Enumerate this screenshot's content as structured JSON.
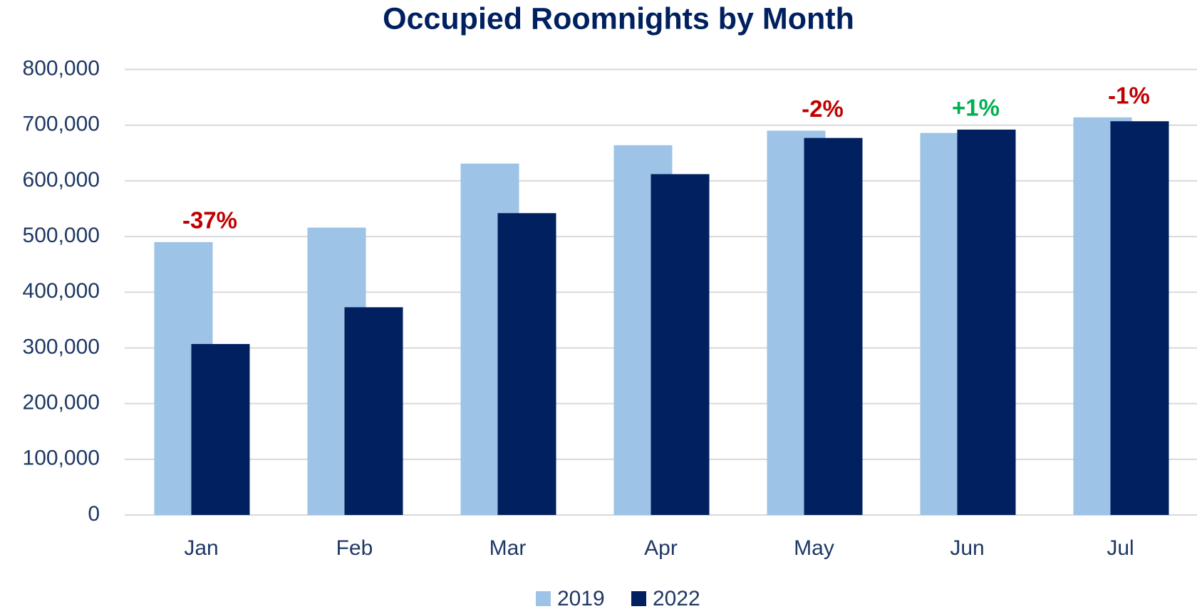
{
  "chart_data": {
    "type": "bar",
    "title": "Occupied Roomnights by Month",
    "categories": [
      "Jan",
      "Feb",
      "Mar",
      "Apr",
      "May",
      "Jun",
      "Jul"
    ],
    "series": [
      {
        "name": "2019",
        "color": "#9dc3e6",
        "values": [
          490000,
          516000,
          631000,
          664000,
          690000,
          686000,
          714000
        ]
      },
      {
        "name": "2022",
        "color": "#002060",
        "values": [
          307000,
          373000,
          542000,
          612000,
          677000,
          692000,
          707000
        ]
      }
    ],
    "ylim": [
      0,
      800000
    ],
    "yticks": [
      0,
      {
        "value": 100000,
        "label": "100,000"
      },
      {
        "value": 200000,
        "label": "200,000"
      },
      {
        "value": 300000,
        "label": "300,000"
      },
      {
        "value": 400000,
        "label": "400,000"
      },
      {
        "value": 500000,
        "label": "500,000"
      },
      {
        "value": 600000,
        "label": "600,000"
      },
      {
        "value": 700000,
        "label": "700,000"
      },
      {
        "value": 800000,
        "label": "800,000"
      }
    ],
    "grid": true,
    "legend": "bottom",
    "annotations": [
      {
        "text": "-37%",
        "category": "Jan",
        "color": "#c00000"
      },
      {
        "text": "-2%",
        "category": "May",
        "color": "#c00000"
      },
      {
        "text": "+1%",
        "category": "Jun",
        "color": "#00b050"
      },
      {
        "text": "-1%",
        "category": "Jul",
        "color": "#c00000"
      }
    ]
  }
}
